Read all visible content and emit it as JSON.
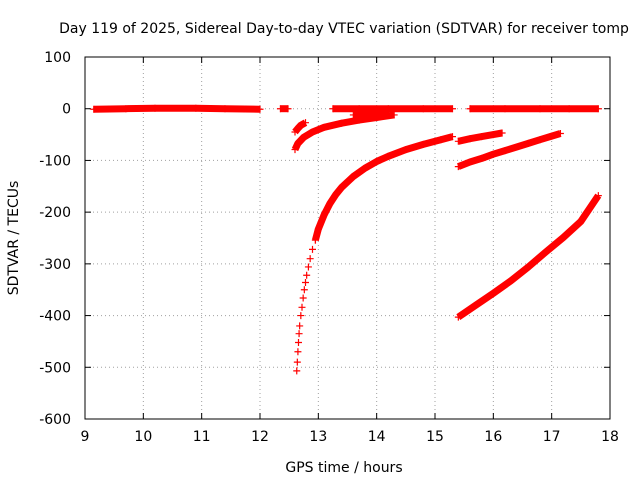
{
  "chart_data": {
    "type": "scatter",
    "title": "Day 119 of 2025, Sidereal Day-to-day VTEC variation (SDTVAR) for receiver tomp",
    "xlabel": "GPS time / hours",
    "ylabel": "SDTVAR / TECUs",
    "xlim": [
      9,
      18
    ],
    "ylim": [
      -600,
      100
    ],
    "xticks": [
      "9",
      "10",
      "11",
      "12",
      "13",
      "14",
      "15",
      "16",
      "17",
      "18"
    ],
    "yticks": [
      "100",
      "0",
      "-100",
      "-200",
      "-300",
      "-400",
      "-500",
      "-600"
    ],
    "grid": true,
    "marker": "+",
    "color": "#ff0000",
    "series": [
      {
        "name": "baseline-1",
        "kind": "line",
        "x": [
          9.15,
          9.7,
          10.2,
          10.9,
          11.4,
          12.0
        ],
        "y": [
          -1,
          0,
          1,
          1,
          0,
          -1
        ]
      },
      {
        "name": "baseline-2",
        "kind": "line",
        "x": [
          12.35,
          12.48
        ],
        "y": [
          0,
          0
        ]
      },
      {
        "name": "baseline-3",
        "kind": "line",
        "x": [
          13.25,
          13.7,
          14.2,
          14.8,
          15.3
        ],
        "y": [
          0,
          0,
          0,
          0,
          0
        ]
      },
      {
        "name": "baseline-4",
        "kind": "line",
        "x": [
          15.6,
          16.2,
          16.8,
          17.3,
          17.8
        ],
        "y": [
          0,
          0,
          0,
          0,
          0
        ]
      },
      {
        "name": "baseline-5",
        "kind": "line",
        "x": [
          13.6,
          14.0,
          14.2
        ],
        "y": [
          -12,
          -10,
          -8
        ]
      },
      {
        "name": "arc-a",
        "kind": "line",
        "x": [
          12.6,
          12.65,
          12.7,
          12.78
        ],
        "y": [
          -45,
          -38,
          -32,
          -27
        ]
      },
      {
        "name": "arc-b",
        "kind": "line",
        "x": [
          12.6,
          12.65,
          12.75,
          12.9,
          13.1,
          13.4,
          13.7,
          14.0,
          14.3
        ],
        "y": [
          -79,
          -67,
          -55,
          -45,
          -36,
          -28,
          -22,
          -17,
          -12
        ]
      },
      {
        "name": "arc-c",
        "kind": "scatter",
        "x": [
          12.63,
          12.64,
          12.65,
          12.66,
          12.67,
          12.68,
          12.7,
          12.72,
          12.74,
          12.76,
          12.78,
          12.8,
          12.83,
          12.86,
          12.9,
          12.95
        ],
        "y": [
          -507,
          -490,
          -470,
          -452,
          -435,
          -420,
          -400,
          -384,
          -366,
          -350,
          -336,
          -322,
          -306,
          -290,
          -272,
          -254
        ]
      },
      {
        "name": "arc-d",
        "kind": "line",
        "x": [
          12.95,
          13.0,
          13.1,
          13.2,
          13.3,
          13.4,
          13.6,
          13.8,
          14.0,
          14.2,
          14.5,
          14.8,
          15.1,
          15.3
        ],
        "y": [
          -254,
          -233,
          -205,
          -183,
          -166,
          -152,
          -131,
          -115,
          -102,
          -92,
          -79,
          -69,
          -60,
          -54
        ]
      },
      {
        "name": "arc-e",
        "kind": "line",
        "x": [
          15.4,
          15.6,
          15.8,
          16.0,
          16.15
        ],
        "y": [
          -63,
          -58,
          -54,
          -50,
          -47
        ]
      },
      {
        "name": "arc-f",
        "kind": "line",
        "x": [
          15.4,
          15.6,
          15.8,
          16.0,
          16.2,
          16.4,
          16.6,
          16.8,
          17.0,
          17.15
        ],
        "y": [
          -112,
          -103,
          -96,
          -88,
          -81,
          -74,
          -67,
          -60,
          -53,
          -48
        ]
      },
      {
        "name": "arc-g",
        "kind": "line",
        "x": [
          15.4,
          15.7,
          16.0,
          16.3,
          16.6,
          16.9,
          17.2,
          17.5,
          17.8
        ],
        "y": [
          -403,
          -380,
          -357,
          -333,
          -306,
          -277,
          -249,
          -218,
          -168
        ]
      }
    ]
  }
}
